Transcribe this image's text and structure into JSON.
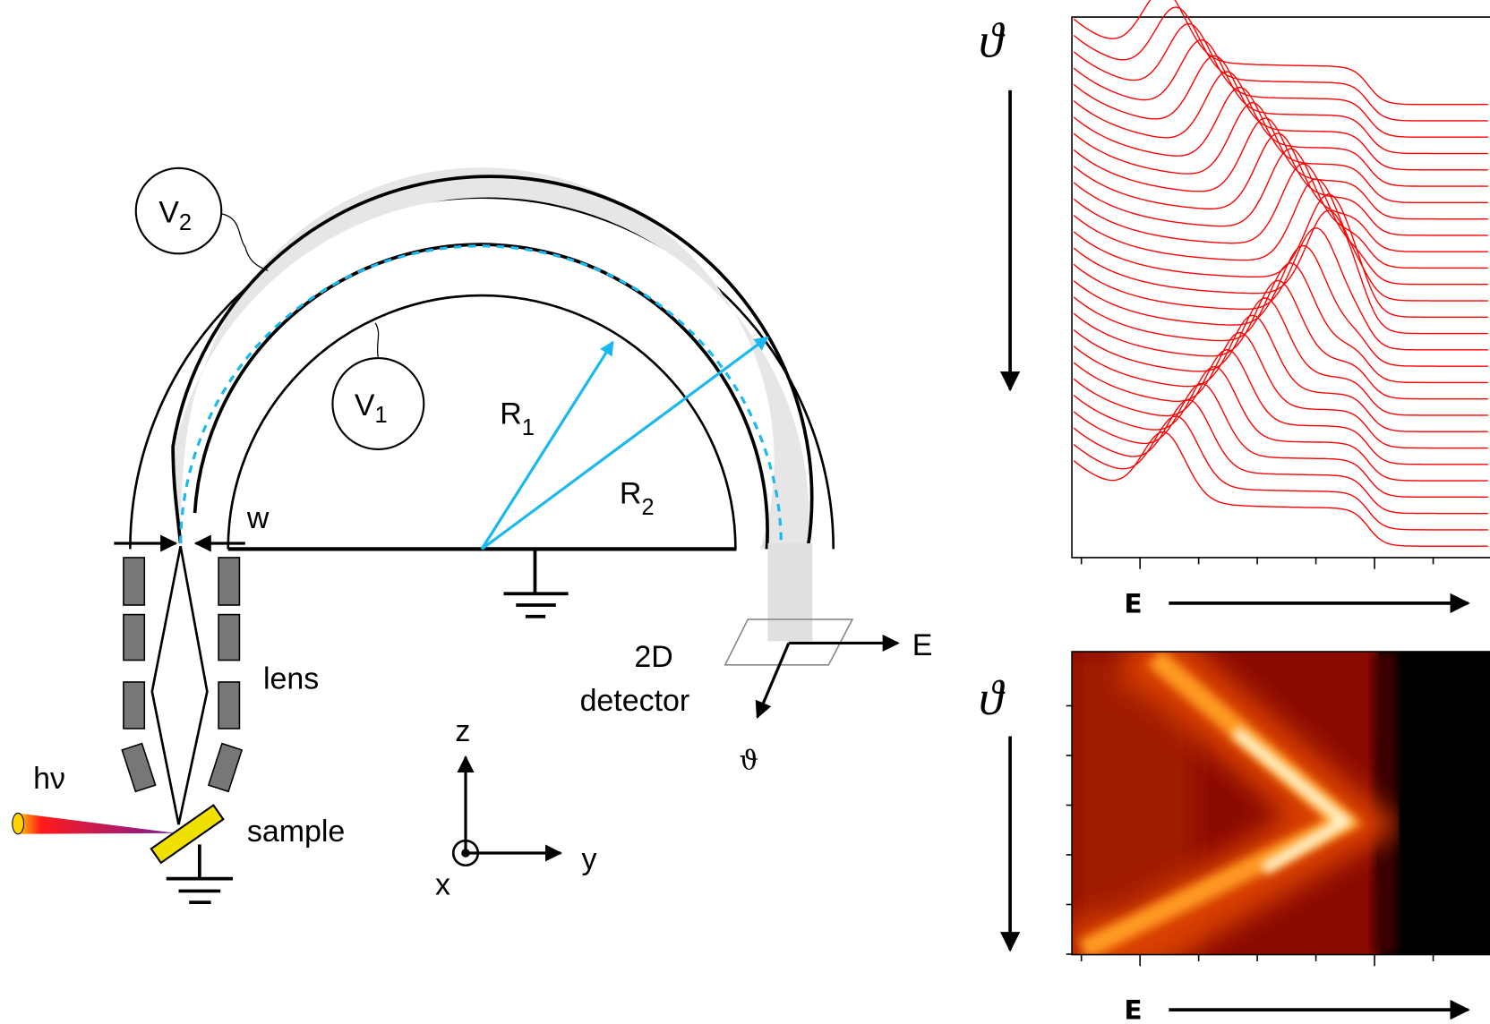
{
  "analyzer": {
    "v2": {
      "symbol": "V",
      "index": "2"
    },
    "v1": {
      "symbol": "V",
      "index": "1"
    },
    "r1": {
      "symbol": "R",
      "index": "1"
    },
    "r2": {
      "symbol": "R",
      "index": "2"
    },
    "slit_width": "w",
    "lens": "lens",
    "photon": "hν",
    "sample": "sample",
    "detector": [
      "2D",
      "detector"
    ],
    "detector_axes": {
      "energy": "E",
      "angle": "ϑ"
    },
    "coordinates": {
      "z": "z",
      "y": "y",
      "x": "x"
    }
  },
  "spectra_panel": {
    "angle_axis": "ϑ",
    "energy_axis": "E"
  },
  "intensity_map": {
    "angle_axis": "ϑ",
    "energy_axis": "E"
  }
}
